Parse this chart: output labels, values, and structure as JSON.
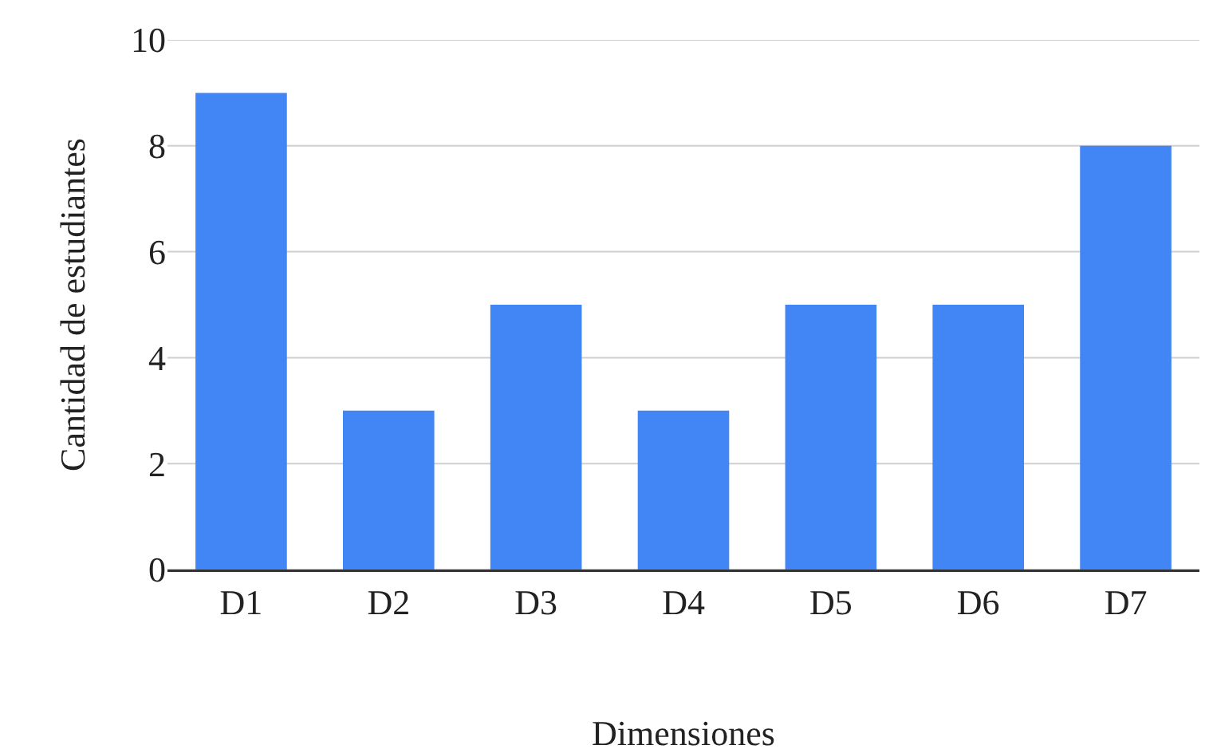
{
  "chart_data": {
    "type": "bar",
    "xlabel": "Dimensiones",
    "ylabel": "Cantidad de estudiantes",
    "categories": [
      "D1",
      "D2",
      "D3",
      "D4",
      "D5",
      "D6",
      "D7"
    ],
    "values": [
      9,
      3,
      5,
      3,
      5,
      5,
      8
    ],
    "color": "#4285f4",
    "ylim": [
      0,
      10
    ],
    "yticks": [
      0,
      2,
      4,
      6,
      8,
      10
    ],
    "grid": "y"
  }
}
